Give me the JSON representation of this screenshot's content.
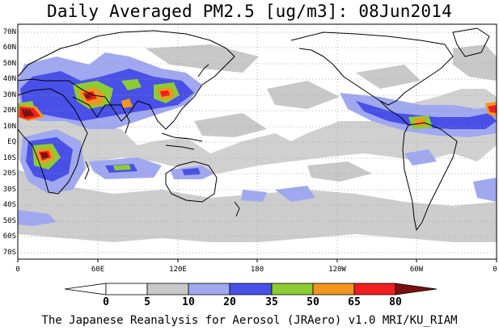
{
  "title": "Daily Averaged PM2.5 [ug/m3]: 08Jun2014",
  "footer": "The Japanese Reanalysis for Aerosol (JRAero) v1.0 MRI/KU_RIAM",
  "lat_labels": [
    "70N",
    "60N",
    "50N",
    "40N",
    "30N",
    "20N",
    "10N",
    "EQ",
    "10S",
    "20S",
    "30S",
    "40S",
    "50S",
    "60S",
    "70S"
  ],
  "lon_labels": [
    "0",
    "60E",
    "120E",
    "180",
    "120W",
    "60W",
    "0"
  ],
  "colorbar": {
    "ticks": [
      "0",
      "5",
      "10",
      "20",
      "35",
      "50",
      "65",
      "80"
    ],
    "colors": [
      "#ffffff",
      "#c8c8c8",
      "#a0a8f0",
      "#4850e8",
      "#8ccc32",
      "#f0961e",
      "#f01e1e",
      "#7a1010"
    ]
  },
  "colors": {
    "land": "#ffffff",
    "ocean": "#ffffff",
    "grid": "#9a9a9a",
    "coast": "#000000"
  }
}
